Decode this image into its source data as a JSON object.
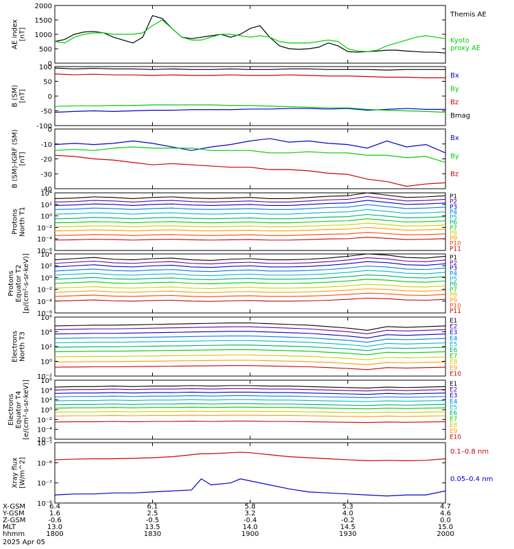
{
  "chart_data": [
    {
      "id": "ae",
      "type": "line",
      "ylabel": [
        "AE index",
        "[nT]"
      ],
      "ylim": [
        0,
        2000
      ],
      "yscale": "linear",
      "ytick_labels": [
        "0",
        "500",
        "1000",
        "1500",
        "2000"
      ],
      "x": [
        0,
        5,
        10,
        15,
        20,
        25,
        30,
        35,
        40,
        45,
        50,
        55,
        60,
        65,
        70,
        75,
        80,
        85,
        90,
        95,
        100,
        105,
        110,
        115,
        120,
        125,
        130,
        135,
        140,
        145,
        150,
        155,
        160,
        165,
        170,
        175,
        180,
        185,
        190,
        195,
        200
      ],
      "series": [
        {
          "name": "Themis AE",
          "label_lines": [
            "Themis AE"
          ],
          "color": "#000000",
          "values": [
            750,
            820,
            1000,
            1080,
            1100,
            1050,
            900,
            800,
            700,
            900,
            1650,
            1550,
            1200,
            900,
            850,
            900,
            950,
            1000,
            900,
            1000,
            1200,
            1300,
            900,
            600,
            500,
            480,
            500,
            550,
            700,
            600,
            400,
            380,
            400,
            420,
            450,
            450,
            420,
            400,
            380,
            380,
            350
          ]
        },
        {
          "name": "Kyoto proxy AE",
          "label_lines": [
            "Kyoto",
            "proxy AE"
          ],
          "color": "#00cc00",
          "values": [
            750,
            700,
            900,
            1000,
            1050,
            1050,
            1000,
            1000,
            1000,
            1050,
            1300,
            1500,
            1200,
            900,
            800,
            800,
            900,
            1000,
            1000,
            950,
            900,
            950,
            900,
            750,
            700,
            700,
            700,
            750,
            800,
            750,
            500,
            420,
            400,
            450,
            600,
            700,
            800,
            900,
            950,
            900,
            850
          ]
        }
      ]
    },
    {
      "id": "bsm",
      "type": "line",
      "ylabel": [
        "B (SM)",
        "[nT]"
      ],
      "ylim": [
        -100,
        100
      ],
      "yscale": "linear",
      "ytick_labels": [
        "-100",
        "-50",
        "0",
        "50",
        "100"
      ],
      "x": [
        0,
        10,
        20,
        30,
        40,
        50,
        60,
        70,
        80,
        90,
        100,
        110,
        120,
        130,
        140,
        150,
        160,
        170,
        180,
        190,
        200
      ],
      "series": [
        {
          "name": "Bx",
          "color": "#0000cc",
          "values": [
            -55,
            -52,
            -50,
            -52,
            -50,
            -48,
            -48,
            -46,
            -46,
            -46,
            -44,
            -44,
            -42,
            -42,
            -44,
            -42,
            -48,
            -45,
            -42,
            -45,
            -45
          ]
        },
        {
          "name": "By",
          "color": "#00cc00",
          "values": [
            -35,
            -33,
            -33,
            -32,
            -32,
            -30,
            -30,
            -30,
            -30,
            -32,
            -32,
            -34,
            -36,
            -38,
            -40,
            -40,
            -45,
            -48,
            -50,
            -52,
            -55
          ]
        },
        {
          "name": "Bz",
          "color": "#cc0000",
          "values": [
            75,
            72,
            74,
            72,
            72,
            70,
            72,
            70,
            70,
            72,
            70,
            70,
            72,
            70,
            68,
            68,
            66,
            64,
            64,
            62,
            62
          ]
        },
        {
          "name": "Bmag",
          "color": "#000000",
          "values": [
            95,
            92,
            94,
            92,
            92,
            90,
            92,
            90,
            90,
            92,
            90,
            90,
            92,
            92,
            90,
            90,
            90,
            88,
            90,
            90,
            90
          ]
        }
      ]
    },
    {
      "id": "bsm_igrf",
      "type": "line",
      "ylabel": [
        "B (SM)-IGRF (SM)",
        "[nT]"
      ],
      "ylim": [
        -40,
        10
      ],
      "yscale": "linear",
      "ytick_labels": [
        "-40",
        "-30",
        "-20",
        "-10",
        "0"
      ],
      "x": [
        0,
        10,
        20,
        30,
        40,
        50,
        60,
        70,
        80,
        90,
        100,
        110,
        120,
        130,
        140,
        150,
        160,
        170,
        180,
        190,
        200
      ],
      "series": [
        {
          "name": "Bx",
          "color": "#0000cc",
          "values": [
            -3,
            -2,
            -3,
            -2,
            0,
            -2,
            -5,
            -8,
            -5,
            -3,
            0,
            2,
            -1,
            0,
            -2,
            -3,
            -6,
            0,
            -5,
            -3,
            -10
          ]
        },
        {
          "name": "By",
          "color": "#00cc00",
          "values": [
            -8,
            -7,
            -8,
            -6,
            -5,
            -6,
            -6,
            -6,
            -8,
            -8,
            -8,
            -10,
            -10,
            -9,
            -10,
            -10,
            -12,
            -12,
            -14,
            -13,
            -18
          ]
        },
        {
          "name": "Bz",
          "color": "#cc0000",
          "values": [
            -12,
            -13,
            -15,
            -16,
            -18,
            -20,
            -19,
            -20,
            -21,
            -22,
            -22,
            -24,
            -24,
            -25,
            -27,
            -28,
            -32,
            -34,
            -38,
            -36,
            -35
          ]
        }
      ]
    },
    {
      "id": "protons_t1",
      "type": "line",
      "ylabel": [
        "Protons",
        "North T1"
      ],
      "ylim": [
        -6,
        4
      ],
      "yscale": "log10",
      "ytick_labels": [
        "10⁻⁶",
        "10⁻⁴",
        "10⁻²",
        "10⁰",
        "10²",
        "10⁴"
      ],
      "channel_labels": [
        "P1",
        "P2",
        "P3",
        "P4",
        "P5",
        "P6",
        "P7",
        "P8",
        "P9",
        "P10",
        "P11"
      ],
      "colors": [
        "#000000",
        "#660099",
        "#0000cc",
        "#0077ee",
        "#00bbbb",
        "#00aa66",
        "#00cc00",
        "#cccc00",
        "#ff9900",
        "#ff4400",
        "#cc0000"
      ],
      "base_log10": [
        3.0,
        2.4,
        1.8,
        1.1,
        0.3,
        -0.5,
        -1.2,
        -1.9,
        -2.6,
        -3.4,
        -4.2
      ],
      "x": [
        0,
        10,
        20,
        30,
        40,
        50,
        60,
        70,
        80,
        90,
        100,
        110,
        120,
        130,
        140,
        150,
        160,
        170,
        180,
        190,
        200
      ],
      "shape": [
        0,
        0.1,
        0.3,
        0.2,
        0,
        0.2,
        0.3,
        0.1,
        0,
        0.1,
        0.2,
        0,
        0,
        0.2,
        0.4,
        0.5,
        1.0,
        0.6,
        0.2,
        0.3,
        0.5
      ]
    },
    {
      "id": "protons_t2",
      "type": "line",
      "ylabel": [
        "Protons",
        "Equator T2",
        "[p/(cm²-s-sr-keV)]"
      ],
      "ylim": [
        -6,
        4
      ],
      "yscale": "log10",
      "ytick_labels": [
        "10⁻⁶",
        "10⁻⁴",
        "10⁻²",
        "10⁰",
        "10²",
        "10⁴"
      ],
      "channel_labels": [
        "P1",
        "P2",
        "P3",
        "P4",
        "P5",
        "P6",
        "P7",
        "P8",
        "P9",
        "P10",
        "P11"
      ],
      "colors": [
        "#000000",
        "#660099",
        "#0000cc",
        "#0077ee",
        "#00bbbb",
        "#00aa66",
        "#00cc00",
        "#cccc00",
        "#ff9900",
        "#ff4400",
        "#cc0000"
      ],
      "base_log10": [
        3.0,
        2.4,
        1.8,
        1.1,
        0.4,
        -0.3,
        -1.0,
        -1.8,
        -2.5,
        -3.2,
        -4.0
      ],
      "x": [
        0,
        10,
        20,
        30,
        40,
        50,
        60,
        70,
        80,
        90,
        100,
        110,
        120,
        130,
        140,
        150,
        160,
        170,
        180,
        190,
        200
      ],
      "shape": [
        0,
        0.2,
        0.4,
        0.1,
        0,
        0.2,
        0.3,
        0,
        -0.1,
        0.1,
        0.2,
        0,
        0,
        0.1,
        0.3,
        0.6,
        1.0,
        0.8,
        0.4,
        0.3,
        0.6
      ]
    },
    {
      "id": "electrons_t3",
      "type": "line",
      "ylabel": [
        "Electrons",
        "North T3"
      ],
      "ylim": [
        -2,
        6
      ],
      "yscale": "log10",
      "ytick_labels": [
        "10⁻²",
        "10⁰",
        "10²",
        "10⁴",
        "10⁶"
      ],
      "channel_labels": [
        "E1",
        "E2",
        "E3",
        "E4",
        "E5",
        "E6",
        "E7",
        "E8",
        "E9",
        "E10"
      ],
      "colors": [
        "#000000",
        "#660099",
        "#0000cc",
        "#0077ee",
        "#00bbbb",
        "#00aa66",
        "#00cc00",
        "#cccc00",
        "#ff9900",
        "#cc0000"
      ],
      "base_log10": [
        4.8,
        4.3,
        3.7,
        3.1,
        2.5,
        1.9,
        1.3,
        0.6,
        -0.1,
        -0.8
      ],
      "x": [
        0,
        10,
        20,
        30,
        40,
        50,
        60,
        70,
        80,
        90,
        100,
        110,
        120,
        130,
        140,
        150,
        160,
        170,
        180,
        190,
        200
      ],
      "shape": [
        0,
        0.05,
        0.1,
        0.1,
        0.15,
        0.2,
        0.25,
        0.3,
        0.35,
        0.4,
        0.4,
        0.3,
        0.2,
        0.1,
        -0.1,
        -0.3,
        -0.6,
        -0.1,
        -0.2,
        -0.1,
        0
      ]
    },
    {
      "id": "electrons_t4",
      "type": "line",
      "ylabel": [
        "Electrons",
        "Equator T4",
        "[e/(cm²-s-sr-keV)]"
      ],
      "ylim": [
        -6,
        6
      ],
      "yscale": "log10",
      "ytick_labels": [
        "10⁻⁶",
        "10⁻⁴",
        "10⁻²",
        "10⁰",
        "10²",
        "10⁴",
        "10⁶"
      ],
      "channel_labels": [
        "E1",
        "E2",
        "E3",
        "E4",
        "E5",
        "E6",
        "E7",
        "E8",
        "E9",
        "E10"
      ],
      "colors": [
        "#000000",
        "#660099",
        "#0000cc",
        "#0077ee",
        "#00bbbb",
        "#00aa66",
        "#00cc00",
        "#cccc00",
        "#ff9900",
        "#cc0000"
      ],
      "base_log10": [
        4.6,
        4.0,
        3.3,
        2.6,
        1.8,
        1.0,
        0.3,
        -0.5,
        -1.3,
        -2.5
      ],
      "x": [
        0,
        10,
        20,
        30,
        40,
        50,
        60,
        70,
        80,
        90,
        100,
        110,
        120,
        130,
        140,
        150,
        160,
        170,
        180,
        190,
        200
      ],
      "shape": [
        0,
        0.1,
        0.1,
        0.2,
        0.1,
        0.2,
        0.2,
        0.3,
        0.2,
        0.3,
        0.3,
        0.2,
        0.2,
        0.1,
        0,
        -0.1,
        -0.2,
        0,
        -0.1,
        0,
        0.1
      ]
    },
    {
      "id": "xray",
      "type": "line",
      "ylabel": [
        "Xray flux",
        "[W/m^2]"
      ],
      "ylim": [
        -8,
        -5
      ],
      "yscale": "log10",
      "ytick_labels": [
        "10⁻⁸",
        "10⁻⁷",
        "10⁻⁶",
        "10⁻⁵"
      ],
      "x": [
        0,
        10,
        20,
        30,
        40,
        50,
        60,
        70,
        75,
        80,
        90,
        95,
        100,
        110,
        120,
        130,
        140,
        150,
        160,
        170,
        180,
        190,
        200
      ],
      "series": [
        {
          "name": "0.1-0.8 nm",
          "label": "0.1–0.8 nm",
          "color": "#cc0000",
          "values": [
            -5.85,
            -5.82,
            -5.8,
            -5.8,
            -5.78,
            -5.75,
            -5.7,
            -5.6,
            -5.55,
            -5.55,
            -5.5,
            -5.48,
            -5.5,
            -5.6,
            -5.7,
            -5.75,
            -5.8,
            -5.85,
            -5.9,
            -5.88,
            -5.9,
            -5.88,
            -5.8
          ]
        },
        {
          "name": "0.05-0.4 nm",
          "label": "0.05–0.4 nm",
          "color": "#0000cc",
          "values": [
            -7.6,
            -7.55,
            -7.55,
            -7.5,
            -7.5,
            -7.45,
            -7.4,
            -7.35,
            -6.8,
            -7.1,
            -7.0,
            -6.8,
            -6.9,
            -7.1,
            -7.3,
            -7.45,
            -7.5,
            -7.55,
            -7.6,
            -7.65,
            -7.6,
            -7.6,
            -7.4
          ]
        }
      ]
    }
  ],
  "x_axis": {
    "rows": [
      {
        "label": "X-GSM",
        "values": [
          "6.4",
          "6.1",
          "5.8",
          "5.3",
          "4.7"
        ]
      },
      {
        "label": "Y-GSM",
        "values": [
          "1.6",
          "2.5",
          "3.2",
          "4.0",
          "4.6"
        ]
      },
      {
        "label": "Z-GSM",
        "values": [
          "-0.6",
          "-0.5",
          "-0.4",
          "-0.2",
          "0.0"
        ]
      },
      {
        "label": "MLT",
        "values": [
          "13.0",
          "13.5",
          "14.0",
          "14.5",
          "15.0"
        ]
      },
      {
        "label": "hhmm",
        "values": [
          "1800",
          "1830",
          "1900",
          "1930",
          "2000"
        ]
      }
    ],
    "date": "2025 Apr 05",
    "tick_x": [
      0,
      50,
      100,
      150,
      200
    ],
    "xlim": [
      0,
      200
    ]
  }
}
